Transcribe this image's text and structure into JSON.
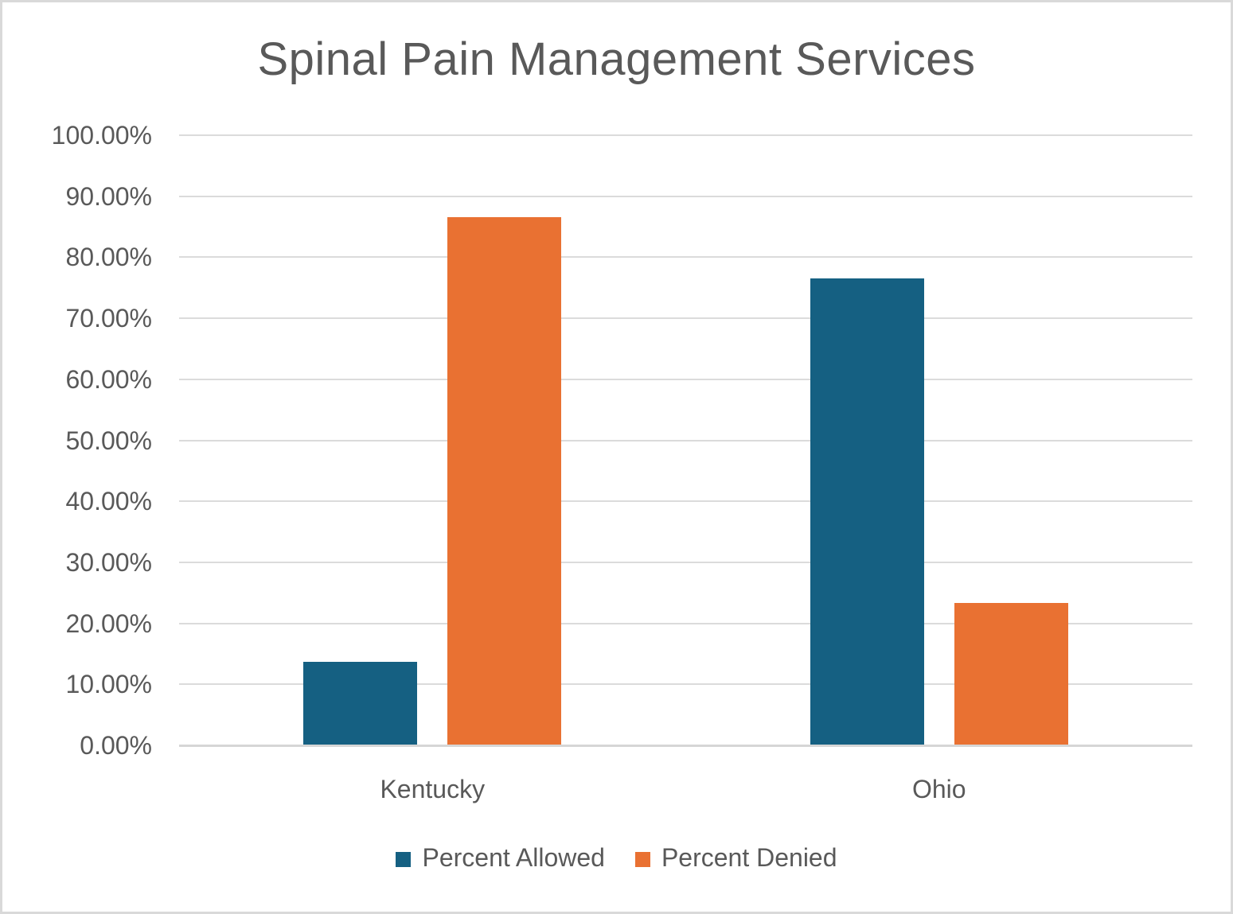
{
  "chart_data": {
    "type": "bar",
    "title": "Spinal Pain Management Services",
    "categories": [
      "Kentucky",
      "Ohio"
    ],
    "series": [
      {
        "name": "Percent Allowed",
        "color": "#156082",
        "values": [
          13.7,
          76.5
        ]
      },
      {
        "name": "Percent Denied",
        "color": "#E97132",
        "values": [
          86.6,
          23.3
        ]
      }
    ],
    "xlabel": "",
    "ylabel": "",
    "ylim": [
      0,
      100
    ],
    "y_tick_step": 10,
    "y_ticks": [
      "0.00%",
      "10.00%",
      "20.00%",
      "30.00%",
      "40.00%",
      "50.00%",
      "60.00%",
      "70.00%",
      "80.00%",
      "90.00%",
      "100.00%"
    ],
    "grid": true,
    "legend_position": "bottom"
  },
  "colors": {
    "text": "#595959",
    "gridline": "#DBDBDB",
    "axis_line": "#D6D6D6",
    "background": "#FFFFFF",
    "canvas_border": "#D9D9D9"
  }
}
